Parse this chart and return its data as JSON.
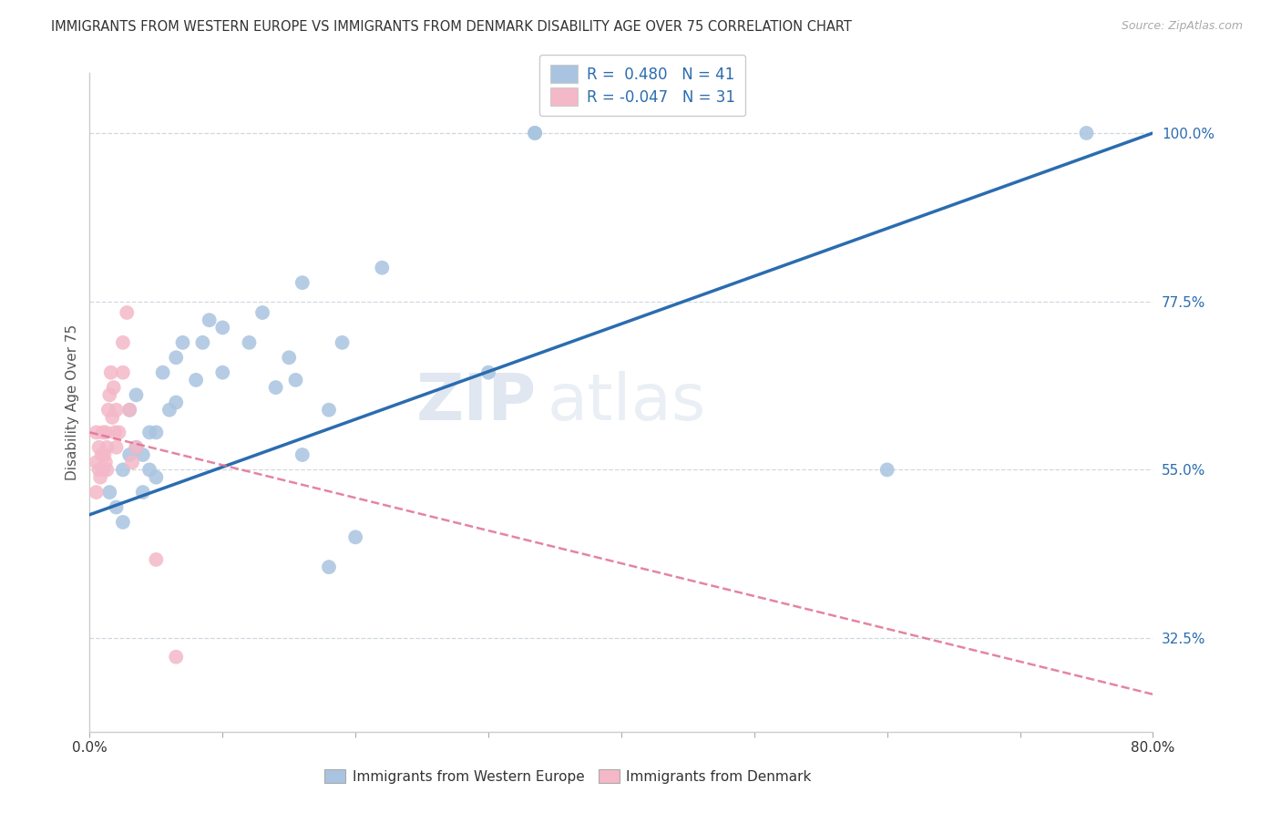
{
  "title": "IMMIGRANTS FROM WESTERN EUROPE VS IMMIGRANTS FROM DENMARK DISABILITY AGE OVER 75 CORRELATION CHART",
  "source": "Source: ZipAtlas.com",
  "ylabel": "Disability Age Over 75",
  "xmin": 0.0,
  "xmax": 0.8,
  "ymin": 0.2,
  "ymax": 1.08,
  "xtick_pos": [
    0.0,
    0.1,
    0.2,
    0.3,
    0.4,
    0.5,
    0.6,
    0.7,
    0.8
  ],
  "xticklabels": [
    "0.0%",
    "",
    "",
    "",
    "",
    "",
    "",
    "",
    "80.0%"
  ],
  "ytick_positions": [
    0.325,
    0.55,
    0.775,
    1.0
  ],
  "ytick_labels": [
    "32.5%",
    "55.0%",
    "77.5%",
    "100.0%"
  ],
  "r_blue": 0.48,
  "n_blue": 41,
  "r_pink": -0.047,
  "n_pink": 31,
  "blue_color": "#a8c4e0",
  "blue_line_color": "#2b6cb0",
  "pink_color": "#f4b8c8",
  "pink_line_color": "#e07090",
  "watermark_zip": "ZIP",
  "watermark_atlas": "atlas",
  "grid_color": "#d0d8e0",
  "blue_scatter_x": [
    0.015,
    0.02,
    0.025,
    0.025,
    0.03,
    0.03,
    0.035,
    0.035,
    0.04,
    0.04,
    0.045,
    0.045,
    0.05,
    0.05,
    0.055,
    0.06,
    0.065,
    0.065,
    0.07,
    0.08,
    0.085,
    0.09,
    0.1,
    0.1,
    0.12,
    0.13,
    0.14,
    0.15,
    0.155,
    0.16,
    0.18,
    0.19,
    0.2,
    0.22,
    0.3,
    0.335,
    0.335,
    0.6,
    0.75,
    0.16,
    0.18
  ],
  "blue_scatter_y": [
    0.52,
    0.5,
    0.48,
    0.55,
    0.57,
    0.63,
    0.58,
    0.65,
    0.52,
    0.57,
    0.55,
    0.6,
    0.54,
    0.6,
    0.68,
    0.63,
    0.64,
    0.7,
    0.72,
    0.67,
    0.72,
    0.75,
    0.68,
    0.74,
    0.72,
    0.76,
    0.66,
    0.7,
    0.67,
    0.8,
    0.42,
    0.72,
    0.46,
    0.82,
    0.68,
    1.0,
    1.0,
    0.55,
    1.0,
    0.57,
    0.63
  ],
  "pink_scatter_x": [
    0.005,
    0.005,
    0.005,
    0.007,
    0.007,
    0.008,
    0.009,
    0.01,
    0.01,
    0.011,
    0.012,
    0.012,
    0.013,
    0.013,
    0.014,
    0.015,
    0.016,
    0.017,
    0.018,
    0.019,
    0.02,
    0.02,
    0.022,
    0.025,
    0.025,
    0.028,
    0.03,
    0.032,
    0.035,
    0.05,
    0.065
  ],
  "pink_scatter_y": [
    0.56,
    0.6,
    0.52,
    0.55,
    0.58,
    0.54,
    0.57,
    0.55,
    0.6,
    0.57,
    0.56,
    0.6,
    0.55,
    0.58,
    0.63,
    0.65,
    0.68,
    0.62,
    0.66,
    0.6,
    0.58,
    0.63,
    0.6,
    0.68,
    0.72,
    0.76,
    0.63,
    0.56,
    0.58,
    0.43,
    0.3
  ]
}
